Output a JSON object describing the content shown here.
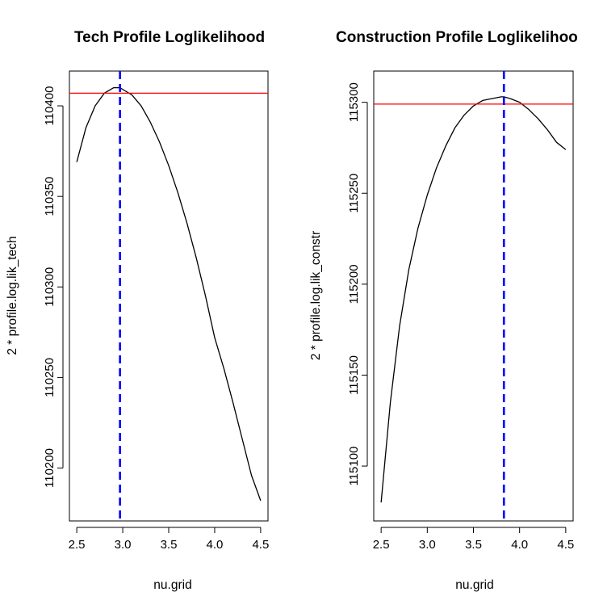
{
  "chart_data": [
    {
      "type": "line",
      "title": "Tech Profile Loglikelihood",
      "xlabel": "nu.grid",
      "ylabel": "2 * profile.log.lik_tech",
      "xlim": [
        2.5,
        4.5
      ],
      "ylim": [
        110180,
        110410
      ],
      "xticks": [
        "2.5",
        "3.0",
        "3.5",
        "4.0",
        "4.5"
      ],
      "yticks": [
        "110200",
        "110250",
        "110300",
        "110350",
        "110400"
      ],
      "grid": false,
      "series": [
        {
          "color": "#000000",
          "style": "solid",
          "x": [
            2.5,
            2.6,
            2.7,
            2.8,
            2.9,
            2.97,
            3.1,
            3.2,
            3.3,
            3.4,
            3.5,
            3.6,
            3.7,
            3.8,
            3.9,
            4.0,
            4.1,
            4.2,
            4.3,
            4.4,
            4.5
          ],
          "y": [
            110369,
            110388,
            110400,
            110407,
            110410,
            110410,
            110406,
            110400,
            110391,
            110380,
            110367,
            110352,
            110335,
            110316,
            110295,
            110272,
            110255,
            110236,
            110216,
            110196,
            110182
          ]
        }
      ],
      "reference_lines": [
        {
          "orientation": "horizontal",
          "value": 110407,
          "color": "#ff0000",
          "style": "solid"
        },
        {
          "orientation": "vertical",
          "value": 2.97,
          "color": "#0000ff",
          "style": "dashed"
        }
      ]
    },
    {
      "type": "line",
      "title": "Construction Profile Loglikelihoo",
      "xlabel": "nu.grid",
      "ylabel": "2 * profile.log.lik_constr",
      "xlim": [
        2.5,
        4.5
      ],
      "ylim": [
        115079,
        115308
      ],
      "xticks": [
        "2.5",
        "3.0",
        "3.5",
        "4.0",
        "4.5"
      ],
      "yticks": [
        "115100",
        "115150",
        "115200",
        "115250",
        "115300"
      ],
      "grid": false,
      "series": [
        {
          "color": "#000000",
          "style": "solid",
          "x": [
            2.5,
            2.6,
            2.7,
            2.8,
            2.9,
            3.0,
            3.1,
            3.2,
            3.3,
            3.4,
            3.5,
            3.6,
            3.7,
            3.8,
            3.83,
            3.9,
            4.0,
            4.1,
            4.2,
            4.3,
            4.4,
            4.5
          ],
          "y": [
            115080,
            115135,
            115177,
            115208,
            115231,
            115249,
            115264,
            115276,
            115286,
            115293,
            115298,
            115301,
            115302,
            115303,
            115303,
            115302,
            115300,
            115296,
            115291,
            115285,
            115278,
            115274
          ]
        }
      ],
      "reference_lines": [
        {
          "orientation": "horizontal",
          "value": 115299,
          "color": "#ff0000",
          "style": "solid"
        },
        {
          "orientation": "vertical",
          "value": 3.83,
          "color": "#0000ff",
          "style": "dashed"
        }
      ]
    }
  ]
}
